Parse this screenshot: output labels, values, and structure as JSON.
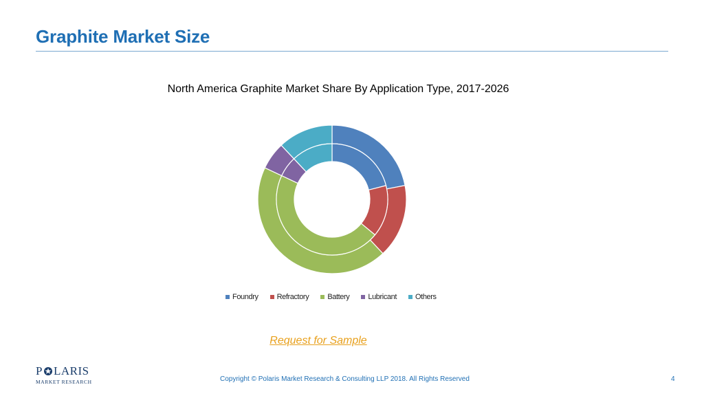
{
  "slide": {
    "title": "Graphite Market Size",
    "request_link": "Request for Sample",
    "copyright": "Copyright © Polaris Market Research & Consulting LLP 2018. All Rights Reserved",
    "page_number": "4"
  },
  "logo": {
    "top_pre": "P",
    "top_post": "LARIS",
    "bottom": "MARKET RESEARCH"
  },
  "chart_data": {
    "type": "pie",
    "variant": "donut-two-ring",
    "title": "North America Graphite Market Share By Application Type, 2017-2026",
    "legend_position": "bottom",
    "categories": [
      "Foundry",
      "Refractory",
      "Battery",
      "Lubricant",
      "Others"
    ],
    "series": [
      {
        "values": [
          22,
          16,
          44,
          6,
          12
        ]
      },
      {
        "values": [
          21,
          15,
          46,
          6,
          12
        ]
      }
    ],
    "colors": [
      "#4f81bd",
      "#c0504d",
      "#9bbb59",
      "#8064a2",
      "#4bacc6"
    ]
  }
}
